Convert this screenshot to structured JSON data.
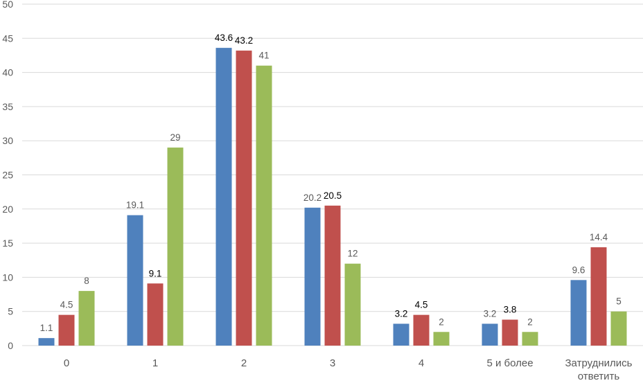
{
  "chart_data": {
    "type": "bar",
    "title": "",
    "xlabel": "",
    "ylabel": "",
    "ylim": [
      0,
      50
    ],
    "yticks": [
      "0",
      "5",
      "10",
      "15",
      "20",
      "25",
      "30",
      "35",
      "40",
      "45",
      "50"
    ],
    "grid": "horizontal",
    "legend": "none",
    "categories": [
      "0",
      "1",
      "2",
      "3",
      "4",
      "5 и более",
      "Затруднились ответить"
    ],
    "category_labels": [
      [
        "0"
      ],
      [
        "1"
      ],
      [
        "2"
      ],
      [
        "3"
      ],
      [
        "4"
      ],
      [
        "5 и более"
      ],
      [
        "Затруднились",
        "ответить"
      ]
    ],
    "series": [
      {
        "color": "#4f81bd",
        "values": [
          1.1,
          19.1,
          43.6,
          20.2,
          3.2,
          3.2,
          9.6
        ],
        "labels": [
          "1.1",
          "19.1",
          "43.6",
          "20.2",
          "3.2",
          "3.2",
          "9.6"
        ],
        "label_colors": [
          "#595959",
          "#595959",
          "#000000",
          "#595959",
          "#000000",
          "#595959",
          "#595959"
        ]
      },
      {
        "color": "#c0504d",
        "values": [
          4.5,
          9.1,
          43.2,
          20.5,
          4.5,
          3.8,
          14.4
        ],
        "labels": [
          "4.5",
          "9.1",
          "43.2",
          "20.5",
          "4.5",
          "3.8",
          "14.4"
        ],
        "label_colors": [
          "#595959",
          "#000000",
          "#000000",
          "#000000",
          "#000000",
          "#000000",
          "#595959"
        ]
      },
      {
        "color": "#9bbb59",
        "values": [
          8,
          29,
          41,
          12,
          2,
          2,
          5
        ],
        "labels": [
          "8",
          "29",
          "41",
          "12",
          "2",
          "2",
          "5"
        ],
        "label_colors": [
          "#595959",
          "#595959",
          "#595959",
          "#595959",
          "#595959",
          "#595959",
          "#595959"
        ]
      }
    ],
    "colors": {
      "grid": "#d9d9d9",
      "axis_text": "#595959"
    }
  }
}
